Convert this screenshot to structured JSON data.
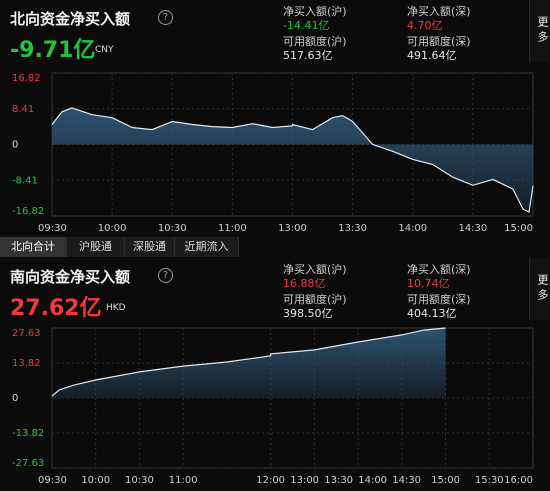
{
  "north": {
    "title": "北向资金净买入额",
    "value": "-9.71亿",
    "value_color": "#22c33a",
    "currency": "CNY",
    "more": "更多",
    "stats": [
      {
        "label": "净买入额(沪)",
        "value": "-14.41亿",
        "color": "#22c33a"
      },
      {
        "label": "净买入额(深)",
        "value": "4.70亿",
        "color": "#f03a3a"
      },
      {
        "label": "可用额度(沪)",
        "value": "517.63亿",
        "color": "#e6e6e6"
      },
      {
        "label": "可用额度(深)",
        "value": "491.64亿",
        "color": "#e6e6e6"
      }
    ],
    "chart": {
      "type": "area",
      "x": [
        "09:30",
        "09:35",
        "09:40",
        "09:50",
        "10:00",
        "10:10",
        "10:20",
        "10:30",
        "10:40",
        "10:50",
        "11:00",
        "11:10",
        "11:20",
        "11:30",
        "13:00",
        "13:10",
        "13:20",
        "13:25",
        "13:30",
        "13:40",
        "13:50",
        "14:00",
        "14:10",
        "14:20",
        "14:30",
        "14:40",
        "14:50",
        "14:55",
        "14:58",
        "15:00"
      ],
      "values": [
        4.7,
        7.7,
        8.6,
        7.0,
        6.3,
        4.0,
        3.5,
        5.4,
        4.7,
        4.2,
        4.0,
        4.9,
        4.0,
        4.4,
        4.7,
        3.5,
        6.3,
        6.8,
        5.4,
        0,
        -1.6,
        -3.5,
        -4.7,
        -7.7,
        -9.6,
        -8.2,
        -10.5,
        -15.2,
        -15.9,
        -9.71
      ],
      "ylim": [
        -16.82,
        16.82
      ],
      "yticks": [
        16.82,
        8.41,
        0,
        -8.41,
        -16.82
      ],
      "xticks": [
        "09:30",
        "10:00",
        "10:30",
        "11:00",
        "13:00",
        "13:30",
        "14:00",
        "14:30",
        "15:00"
      ],
      "line_color": "#e4e9f0",
      "fill_color": "#2f5676",
      "grid": true
    }
  },
  "tabs": [
    "北向合计",
    "沪股通",
    "深股通",
    "近期流入"
  ],
  "south": {
    "title": "南向资金净买入额",
    "value": "27.62亿",
    "value_color": "#f03a3a",
    "currency": "HKD",
    "more": "更多",
    "stats": [
      {
        "label": "净买入额(沪)",
        "value": "16.88亿",
        "color": "#f03a3a"
      },
      {
        "label": "净买入额(深)",
        "value": "10.74亿",
        "color": "#f03a3a"
      },
      {
        "label": "可用额度(沪)",
        "value": "398.50亿",
        "color": "#e6e6e6"
      },
      {
        "label": "可用额度(深)",
        "value": "404.13亿",
        "color": "#e6e6e6"
      }
    ],
    "chart": {
      "type": "area",
      "x": [
        "09:30",
        "09:35",
        "09:45",
        "10:00",
        "10:30",
        "11:00",
        "11:30",
        "12:00",
        "13:00",
        "13:30",
        "14:00",
        "14:30",
        "14:45",
        "15:00"
      ],
      "values": [
        0.8,
        3.2,
        5.1,
        7.1,
        10.3,
        12.6,
        14.2,
        16.6,
        17.4,
        19.0,
        22.1,
        24.9,
        26.8,
        27.62
      ],
      "ylim": [
        -27.63,
        27.63
      ],
      "yticks": [
        27.63,
        13.82,
        0,
        -13.82,
        -27.63
      ],
      "xticks": [
        "09:30",
        "10:00",
        "10:30",
        "11:00",
        "12:00",
        "13:00",
        "13:30",
        "14:00",
        "14:30",
        "15:00",
        "15:30",
        "16:00"
      ],
      "line_color": "#e4e9f0",
      "fill_color": "#2f5676",
      "grid": true
    }
  }
}
